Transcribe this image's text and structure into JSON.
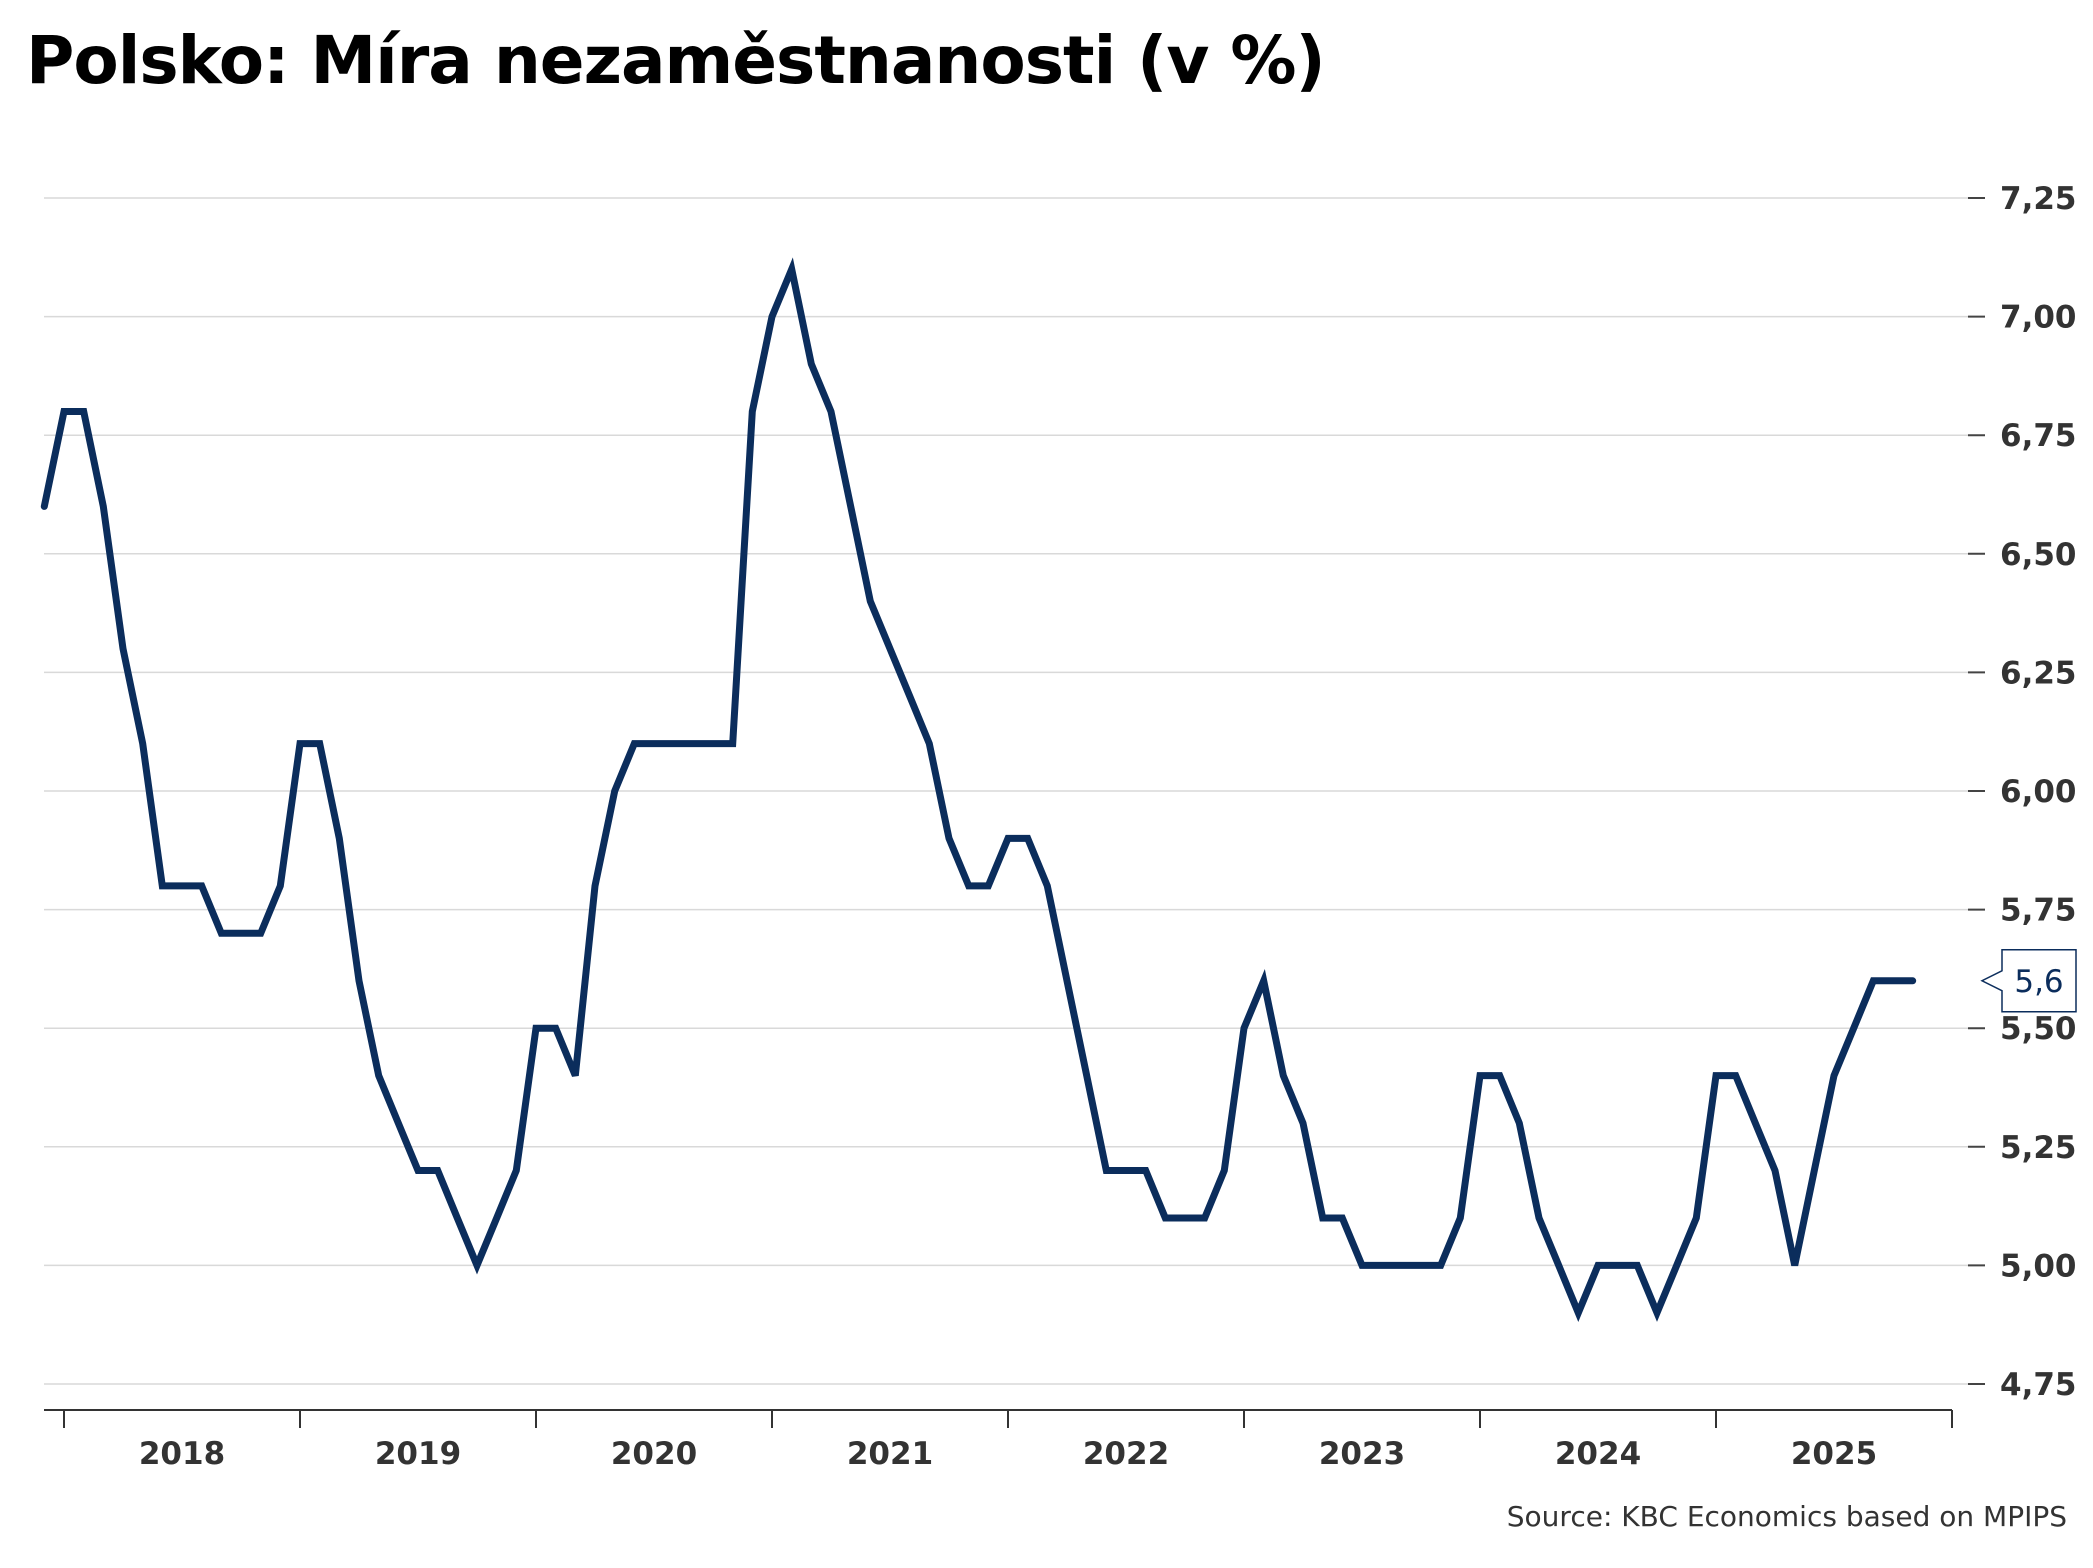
{
  "chart_data": {
    "type": "line",
    "title": "Polsko: Míra nezaměstnanosti (v %)",
    "source": "Source: KBC Economics based on MPIPS",
    "xlabel": "",
    "ylabel": "",
    "ylim": [
      4.75,
      7.25
    ],
    "y_ticks": [
      "4,75",
      "5,00",
      "5,25",
      "5,50",
      "5,75",
      "6,00",
      "6,25",
      "6,50",
      "6,75",
      "7,00",
      "7,25"
    ],
    "y_tick_values": [
      4.75,
      5.0,
      5.25,
      5.5,
      5.75,
      6.0,
      6.25,
      6.5,
      6.75,
      7.0,
      7.25
    ],
    "x_ticks": [
      "2018",
      "2019",
      "2020",
      "2021",
      "2022",
      "2023",
      "2024",
      "2025"
    ],
    "y_axis_side": "right",
    "grid": "horizontal",
    "line_color": "#0b2d5c",
    "start": "2017-12",
    "end": "2025-10",
    "frequency": "monthly",
    "last_value_label": "5,6",
    "series": [
      {
        "values": [
          6.6,
          6.8,
          6.8,
          6.6,
          6.3,
          6.1,
          5.8,
          5.8,
          5.8,
          5.7,
          5.7,
          5.7,
          5.8,
          6.1,
          6.1,
          5.9,
          5.6,
          5.4,
          5.3,
          5.2,
          5.2,
          5.1,
          5.0,
          5.1,
          5.2,
          5.5,
          5.5,
          5.4,
          5.8,
          6.0,
          6.1,
          6.1,
          6.1,
          6.1,
          6.1,
          6.1,
          6.8,
          7.0,
          7.1,
          6.9,
          6.8,
          6.6,
          6.4,
          6.3,
          6.2,
          6.1,
          5.9,
          5.8,
          5.8,
          5.9,
          5.9,
          5.8,
          5.6,
          5.4,
          5.2,
          5.2,
          5.2,
          5.1,
          5.1,
          5.1,
          5.2,
          5.5,
          5.6,
          5.4,
          5.3,
          5.1,
          5.1,
          5.0,
          5.0,
          5.0,
          5.0,
          5.0,
          5.1,
          5.4,
          5.4,
          5.3,
          5.1,
          5.0,
          4.9,
          5.0,
          5.0,
          5.0,
          4.9,
          5.0,
          5.1,
          5.4,
          5.4,
          5.3,
          5.2,
          5.0,
          5.2,
          5.4,
          5.5,
          5.6,
          5.6,
          5.6
        ]
      }
    ]
  }
}
